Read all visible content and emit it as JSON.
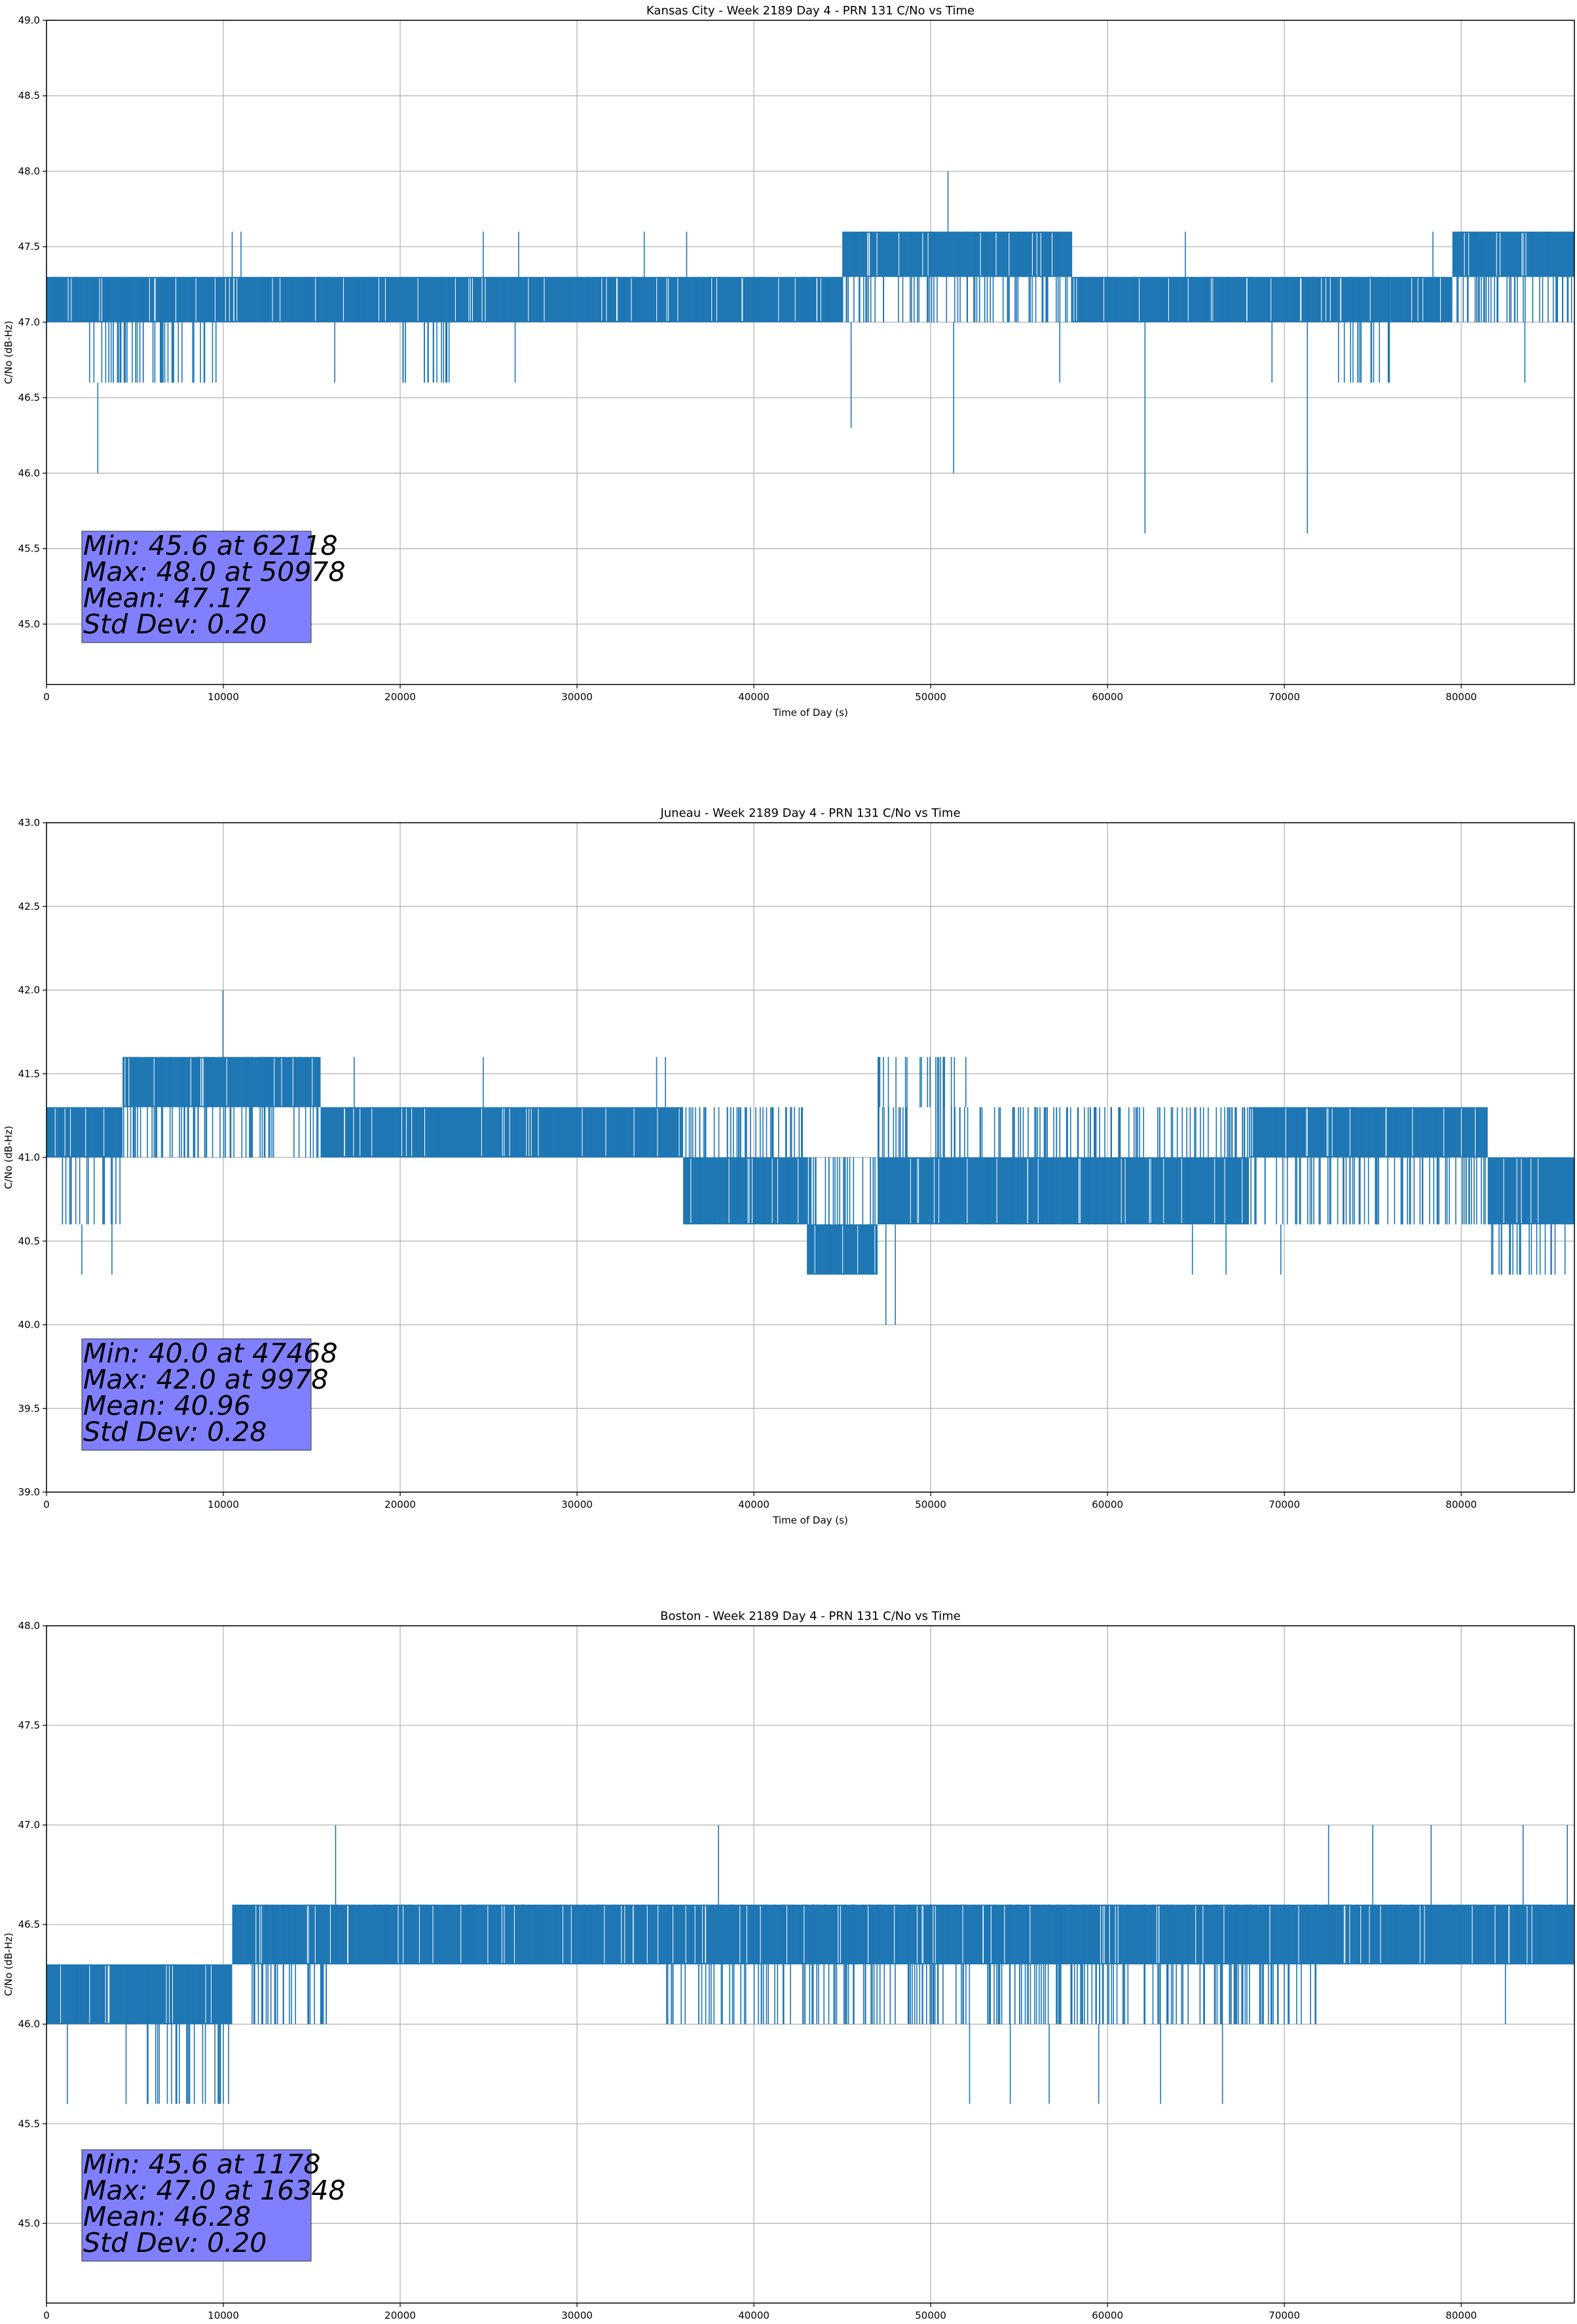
{
  "colors": {
    "series": "#1f77b4",
    "grid": "#b0b0b0",
    "stats_box": "#8080ff",
    "background": "#ffffff"
  },
  "chart_data": [
    {
      "type": "line",
      "title": "Kansas City - Week 2189 Day 4 - PRN 131 C/No vs Time",
      "xlabel": "Time of Day (s)",
      "ylabel": "C/No (dB-Hz)",
      "xlim": [
        0,
        86400
      ],
      "ylim": [
        44.6,
        49.0
      ],
      "xticks": [
        0,
        10000,
        20000,
        30000,
        40000,
        50000,
        60000,
        70000,
        80000
      ],
      "yticks": [
        45.0,
        45.5,
        46.0,
        46.5,
        47.0,
        47.5,
        48.0,
        48.5,
        49.0
      ],
      "grid": true,
      "legend": "none",
      "quantization_step": 0.3,
      "baseline": 47.0,
      "upper_level": 47.3,
      "series": [
        {
          "values_note_free": true,
          "segments": [
            {
              "x_range": [
                0,
                2000
              ],
              "levels": [
                47.0,
                47.3
              ]
            },
            {
              "x_range": [
                2000,
                7000
              ],
              "levels": [
                46.6,
                47.0,
                47.3
              ]
            },
            {
              "x_range": [
                7000,
                10000
              ],
              "levels": [
                46.6,
                47.0,
                47.3
              ]
            },
            {
              "x_range": [
                10000,
                20000
              ],
              "levels": [
                47.0,
                47.3
              ]
            },
            {
              "x_range": [
                20000,
                24000
              ],
              "levels": [
                46.6,
                47.0,
                47.3
              ]
            },
            {
              "x_range": [
                24000,
                45000
              ],
              "levels": [
                47.0,
                47.3
              ]
            },
            {
              "x_range": [
                45000,
                58000
              ],
              "levels": [
                47.0,
                47.3,
                47.6
              ]
            },
            {
              "x_range": [
                58000,
                73000
              ],
              "levels": [
                47.0,
                47.3
              ]
            },
            {
              "x_range": [
                73000,
                76000
              ],
              "levels": [
                46.6,
                47.0,
                47.3
              ]
            },
            {
              "x_range": [
                76000,
                79500
              ],
              "levels": [
                47.0,
                47.3
              ]
            },
            {
              "x_range": [
                79500,
                86400
              ],
              "levels": [
                47.0,
                47.3,
                47.6
              ]
            }
          ],
          "spikes": [
            {
              "x": 2900,
              "y": 46.0
            },
            {
              "x": 45500,
              "y": 46.3
            },
            {
              "x": 50978,
              "y": 48.0
            },
            {
              "x": 51300,
              "y": 46.0
            },
            {
              "x": 62118,
              "y": 45.6
            },
            {
              "x": 71300,
              "y": 45.6
            },
            {
              "x": 10500,
              "y": 47.6
            },
            {
              "x": 11000,
              "y": 47.6
            },
            {
              "x": 24700,
              "y": 47.6
            },
            {
              "x": 26700,
              "y": 47.6
            },
            {
              "x": 33800,
              "y": 47.6
            },
            {
              "x": 36200,
              "y": 47.6
            },
            {
              "x": 64400,
              "y": 47.6
            },
            {
              "x": 78400,
              "y": 47.6
            },
            {
              "x": 16300,
              "y": 46.6
            },
            {
              "x": 26500,
              "y": 46.6
            },
            {
              "x": 57300,
              "y": 46.6
            },
            {
              "x": 69300,
              "y": 46.6
            },
            {
              "x": 83600,
              "y": 46.6
            }
          ]
        }
      ],
      "stats": {
        "lines": [
          "Min: 45.6 at 62118",
          "Max: 48.0 at 50978",
          "Mean: 47.17",
          "Std Dev: 0.20"
        ],
        "placement": "bottom-left"
      }
    },
    {
      "type": "line",
      "title": "Juneau - Week 2189 Day 4 - PRN 131 C/No vs Time",
      "xlabel": "Time of Day (s)",
      "ylabel": "C/No (dB-Hz)",
      "xlim": [
        0,
        86400
      ],
      "ylim": [
        39.0,
        43.0
      ],
      "xticks": [
        0,
        10000,
        20000,
        30000,
        40000,
        50000,
        60000,
        70000,
        80000
      ],
      "yticks": [
        39.0,
        39.5,
        40.0,
        40.5,
        41.0,
        41.5,
        42.0,
        42.5,
        43.0
      ],
      "grid": true,
      "legend": "none",
      "series": [
        {
          "segments": [
            {
              "x_range": [
                0,
                600
              ],
              "levels": [
                41.0,
                41.3
              ]
            },
            {
              "x_range": [
                600,
                4300
              ],
              "levels": [
                40.6,
                41.0,
                41.3
              ]
            },
            {
              "x_range": [
                4300,
                7000
              ],
              "levels": [
                41.0,
                41.3,
                41.6
              ]
            },
            {
              "x_range": [
                7000,
                15500
              ],
              "levels": [
                41.0,
                41.3,
                41.6
              ]
            },
            {
              "x_range": [
                15500,
                36000
              ],
              "levels": [
                41.0,
                41.3
              ]
            },
            {
              "x_range": [
                36000,
                43000
              ],
              "levels": [
                40.6,
                41.0,
                41.3
              ]
            },
            {
              "x_range": [
                43000,
                47000
              ],
              "levels": [
                40.3,
                40.6,
                41.0
              ]
            },
            {
              "x_range": [
                47000,
                52000
              ],
              "levels": [
                40.6,
                41.0,
                41.3,
                41.6
              ]
            },
            {
              "x_range": [
                52000,
                68000
              ],
              "levels": [
                40.6,
                41.0,
                41.3
              ]
            },
            {
              "x_range": [
                68000,
                81500
              ],
              "levels": [
                40.6,
                41.0,
                41.3
              ]
            },
            {
              "x_range": [
                81500,
                86400
              ],
              "levels": [
                40.3,
                40.6,
                41.0
              ]
            }
          ],
          "spikes": [
            {
              "x": 9978,
              "y": 42.0
            },
            {
              "x": 47468,
              "y": 40.0
            },
            {
              "x": 48000,
              "y": 40.0
            },
            {
              "x": 2000,
              "y": 40.3
            },
            {
              "x": 3700,
              "y": 40.3
            },
            {
              "x": 24700,
              "y": 41.6
            },
            {
              "x": 17400,
              "y": 41.6
            },
            {
              "x": 34500,
              "y": 41.6
            },
            {
              "x": 35000,
              "y": 41.6
            },
            {
              "x": 64800,
              "y": 40.3
            },
            {
              "x": 66700,
              "y": 40.3
            },
            {
              "x": 69800,
              "y": 40.3
            }
          ]
        }
      ],
      "stats": {
        "lines": [
          "Min: 40.0 at 47468",
          "Max: 42.0 at 9978",
          "Mean: 40.96",
          "Std Dev: 0.28"
        ],
        "placement": "bottom-left"
      }
    },
    {
      "type": "line",
      "title": "Boston - Week 2189 Day 4 - PRN 131 C/No vs Time",
      "xlabel": "Time of Day (s)",
      "ylabel": "C/No (dB-Hz)",
      "xlim": [
        0,
        86400
      ],
      "ylim": [
        44.6,
        48.0
      ],
      "xticks": [
        0,
        10000,
        20000,
        30000,
        40000,
        50000,
        60000,
        70000,
        80000
      ],
      "yticks": [
        45.0,
        45.5,
        46.0,
        46.5,
        47.0,
        47.5,
        48.0
      ],
      "grid": true,
      "legend": "none",
      "series": [
        {
          "segments": [
            {
              "x_range": [
                0,
                5500
              ],
              "levels": [
                46.0,
                46.3
              ]
            },
            {
              "x_range": [
                5500,
                10500
              ],
              "levels": [
                45.6,
                46.0,
                46.3
              ]
            },
            {
              "x_range": [
                10500,
                16000
              ],
              "levels": [
                46.0,
                46.3,
                46.6
              ]
            },
            {
              "x_range": [
                16000,
                35000
              ],
              "levels": [
                46.3,
                46.6
              ]
            },
            {
              "x_range": [
                35000,
                49000
              ],
              "levels": [
                46.0,
                46.3,
                46.6
              ]
            },
            {
              "x_range": [
                49000,
                72000
              ],
              "levels": [
                46.0,
                46.3,
                46.6
              ]
            },
            {
              "x_range": [
                72000,
                86400
              ],
              "levels": [
                46.3,
                46.6
              ]
            }
          ],
          "spikes": [
            {
              "x": 1178,
              "y": 45.6
            },
            {
              "x": 16348,
              "y": 47.0
            },
            {
              "x": 38000,
              "y": 47.0
            },
            {
              "x": 72500,
              "y": 47.0
            },
            {
              "x": 75000,
              "y": 47.0
            },
            {
              "x": 78300,
              "y": 47.0
            },
            {
              "x": 83500,
              "y": 47.0
            },
            {
              "x": 86000,
              "y": 47.0
            },
            {
              "x": 4500,
              "y": 45.6
            },
            {
              "x": 52200,
              "y": 45.6
            },
            {
              "x": 54500,
              "y": 45.6
            },
            {
              "x": 56700,
              "y": 45.6
            },
            {
              "x": 59500,
              "y": 45.6
            },
            {
              "x": 63000,
              "y": 45.6
            },
            {
              "x": 66500,
              "y": 45.6
            },
            {
              "x": 82500,
              "y": 46.0
            }
          ]
        }
      ],
      "stats": {
        "lines": [
          "Min: 45.6 at 1178",
          "Max: 47.0 at 16348",
          "Mean: 46.28",
          "Std Dev: 0.20"
        ],
        "placement": "bottom-left"
      }
    }
  ]
}
